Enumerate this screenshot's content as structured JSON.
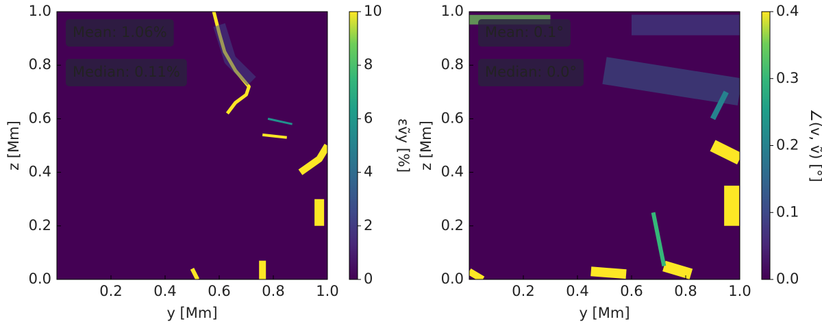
{
  "chart_data": [
    {
      "type": "heatmap",
      "colormap": "viridis",
      "xlabel": "y [Mm]",
      "ylabel": "z [Mm]",
      "xlim": [
        0,
        1
      ],
      "ylim": [
        0,
        1
      ],
      "xticks": [
        0.2,
        0.4,
        0.6,
        0.8,
        {
          "value": 1,
          "label": "1.0"
        }
      ],
      "yticks": [
        {
          "value": 0,
          "label": "0.0"
        },
        0.2,
        0.4,
        0.6,
        0.8,
        {
          "value": 1,
          "label": "1.0"
        }
      ],
      "annotations": [
        "Mean: 1.06%",
        "Median: 0.11%"
      ],
      "colorbar_label": "εṽy [%]",
      "clim": [
        0,
        10
      ],
      "cticks": [
        0,
        2,
        4,
        6,
        8,
        10
      ]
    },
    {
      "type": "heatmap",
      "colormap": "viridis",
      "xlabel": "y [Mm]",
      "ylabel": "z [Mm]",
      "xlim": [
        0,
        1
      ],
      "ylim": [
        0,
        1
      ],
      "xticks": [
        0.2,
        0.4,
        0.6,
        0.8,
        {
          "value": 1,
          "label": "1.0"
        }
      ],
      "yticks": [
        {
          "value": 0,
          "label": "0.0"
        },
        0.2,
        0.4,
        0.6,
        0.8,
        {
          "value": 1,
          "label": "1.0"
        }
      ],
      "annotations": [
        "Mean: 0.1°",
        "Median: 0.0°"
      ],
      "colorbar_label": "∠(v, ṽ) [°]",
      "clim": [
        0,
        0.4
      ],
      "cticks": [
        {
          "value": 0,
          "label": "0.0"
        },
        0.1,
        0.2,
        0.3,
        0.4
      ]
    }
  ]
}
